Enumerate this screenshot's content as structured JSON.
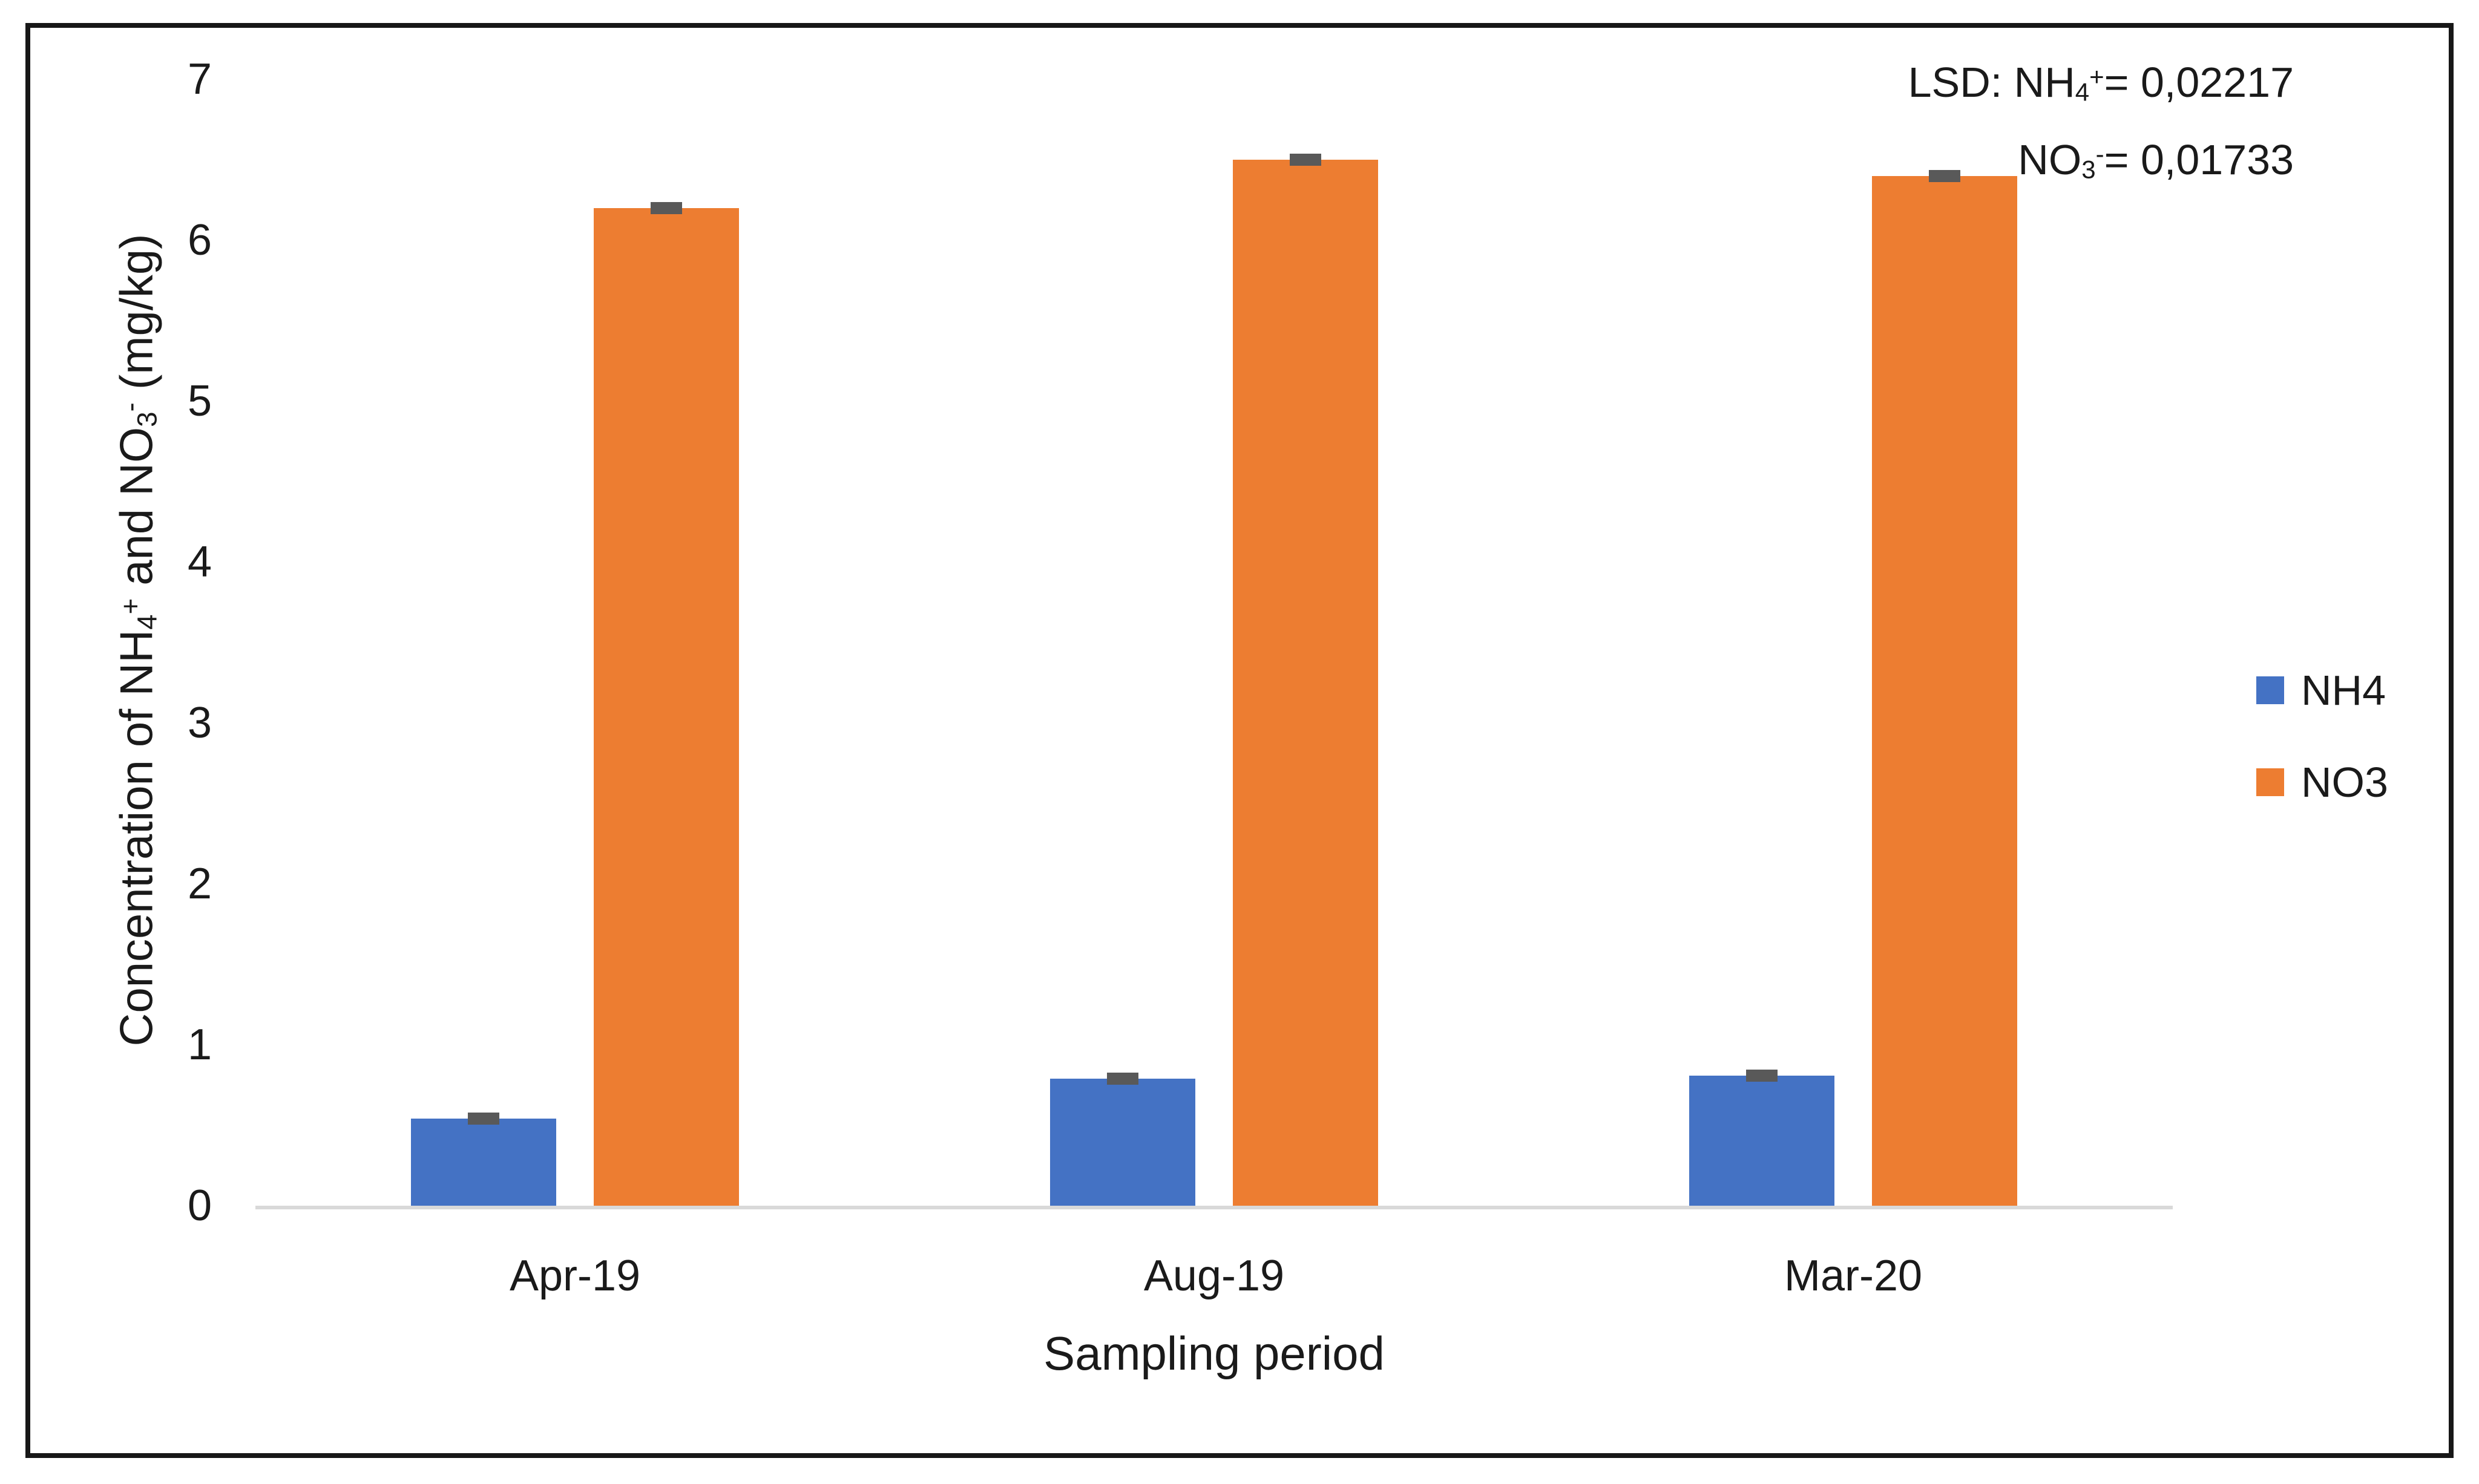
{
  "figure": {
    "background": "#ffffff",
    "border_color": "#171717"
  },
  "chart_data": {
    "type": "bar",
    "title": "",
    "categories": [
      "Apr-19",
      "Aug-19",
      "Mar-20"
    ],
    "series": [
      {
        "name": "NH4",
        "color": "#4472C4",
        "values": [
          0.54,
          0.79,
          0.81
        ],
        "error_caps": [
          0.03,
          0.03,
          0.03
        ]
      },
      {
        "name": "NO3",
        "color": "#ED7D31",
        "values": [
          6.2,
          6.5,
          6.4
        ],
        "error_caps": [
          0.03,
          0.03,
          0.03
        ]
      }
    ],
    "xlabel": "Sampling period",
    "ylabel": "Concentration of NH4+ and NO3- (mg/kg)",
    "ylabel_parts": [
      {
        "t": "Concentration of NH"
      },
      {
        "t": "4",
        "s": "sub"
      },
      {
        "t": "+",
        "s": "sup"
      },
      {
        "t": " and NO"
      },
      {
        "t": "3",
        "s": "sub"
      },
      {
        "t": "-",
        "s": "sup"
      },
      {
        "t": " (mg/kg)"
      }
    ],
    "ylim": [
      0,
      7
    ],
    "yticks": [
      "0",
      "1",
      "2",
      "3",
      "4",
      "5",
      "6",
      "7"
    ],
    "grid": false,
    "legend_position": "right-middle",
    "axis_line_color": "#d9d9d9",
    "error_bar_color": "#595959",
    "annotation_text": [
      "LSD: NH4+= 0,02217",
      "NO3-= 0,01733"
    ],
    "annotation_lines": [
      [
        {
          "t": "LSD: NH"
        },
        {
          "t": "4",
          "s": "sub"
        },
        {
          "t": "+",
          "s": "sup"
        },
        {
          "t": "= 0,02217"
        }
      ],
      [
        {
          "t": "NO"
        },
        {
          "t": "3",
          "s": "sub"
        },
        {
          "t": "-",
          "s": "sup"
        },
        {
          "t": "= 0,01733"
        }
      ]
    ],
    "legend": [
      {
        "label": "NH4",
        "color": "#4472C4"
      },
      {
        "label": "NO3",
        "color": "#ED7D31"
      }
    ]
  }
}
